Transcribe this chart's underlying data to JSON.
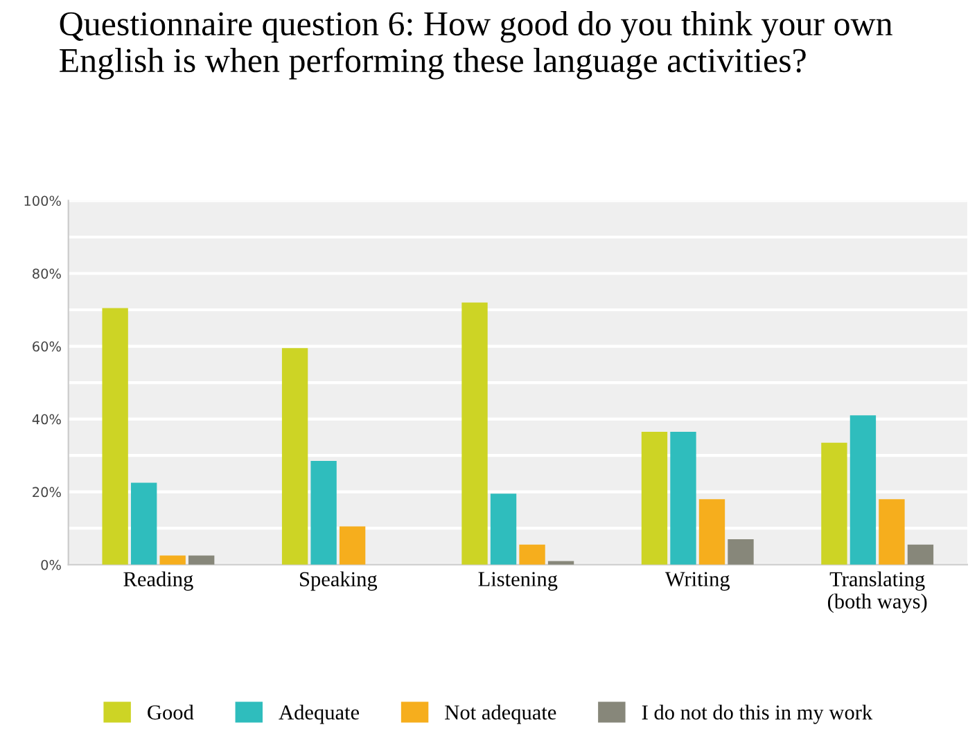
{
  "chart_data": {
    "type": "bar",
    "title": "Questionnaire question 6: How good do you think your own English is when performing these language activities?",
    "categories": [
      "Reading",
      "Speaking",
      "Listening",
      "Writing",
      "Translating\n(both ways)"
    ],
    "series": [
      {
        "name": "Good",
        "color": "#cdd425",
        "values": [
          70.5,
          59.5,
          72,
          36.5,
          33.5
        ]
      },
      {
        "name": "Adequate",
        "color": "#2fbdbd",
        "values": [
          22.5,
          28.5,
          19.5,
          36.5,
          41
        ]
      },
      {
        "name": "Not adequate",
        "color": "#f6ae1d",
        "values": [
          2.5,
          10.5,
          5.5,
          18,
          18
        ]
      },
      {
        "name": "I do not do this in my work",
        "color": "#87877a",
        "values": [
          2.5,
          0,
          1,
          7,
          5.5
        ]
      }
    ],
    "ylim": [
      0,
      100
    ],
    "yticks": [
      {
        "value": 0,
        "label": "0%"
      },
      {
        "value": 10,
        "label": null
      },
      {
        "value": 20,
        "label": "20%"
      },
      {
        "value": 30,
        "label": null
      },
      {
        "value": 40,
        "label": "40%"
      },
      {
        "value": 50,
        "label": null
      },
      {
        "value": 60,
        "label": "60%"
      },
      {
        "value": 70,
        "label": null
      },
      {
        "value": 80,
        "label": "80%"
      },
      {
        "value": 90,
        "label": null
      },
      {
        "value": 100,
        "label": "100%"
      }
    ],
    "grid": "y",
    "legend": "bottom"
  }
}
